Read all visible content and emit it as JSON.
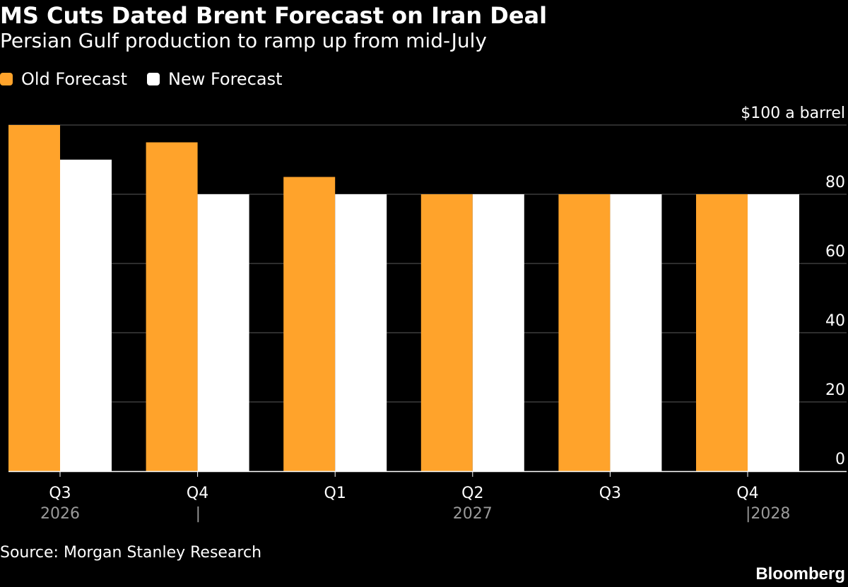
{
  "chart_data": {
    "type": "bar",
    "title": "MS Cuts Dated Brent Forecast on Iran Deal",
    "subtitle": "Persian Gulf production to ramp up from mid-July",
    "categories": [
      "Q3",
      "Q4",
      "Q1",
      "Q2",
      "Q3",
      "Q4"
    ],
    "year_labels": [
      {
        "text": "2026",
        "category_index": 0
      },
      {
        "text": "|",
        "category_index": 1
      },
      {
        "text": "2027",
        "category_index": 3
      },
      {
        "text": "|2028",
        "category_index": 5
      }
    ],
    "series": [
      {
        "name": "Old Forecast",
        "color": "#FFA32B",
        "values": [
          100,
          95,
          85,
          80,
          80,
          80
        ]
      },
      {
        "name": "New Forecast",
        "color": "#FFFFFF",
        "values": [
          90,
          80,
          80,
          80,
          80,
          80
        ]
      }
    ],
    "ylim": [
      0,
      100
    ],
    "yticks": [
      0,
      20,
      40,
      60,
      80,
      100
    ],
    "ytick_labels": [
      "0",
      "20",
      "40",
      "60",
      "80",
      "$100 a barrel"
    ],
    "y_axis_position": "right",
    "grid": true,
    "legend_position": "top-left",
    "source": "Source: Morgan Stanley Research",
    "brand": "Bloomberg"
  }
}
